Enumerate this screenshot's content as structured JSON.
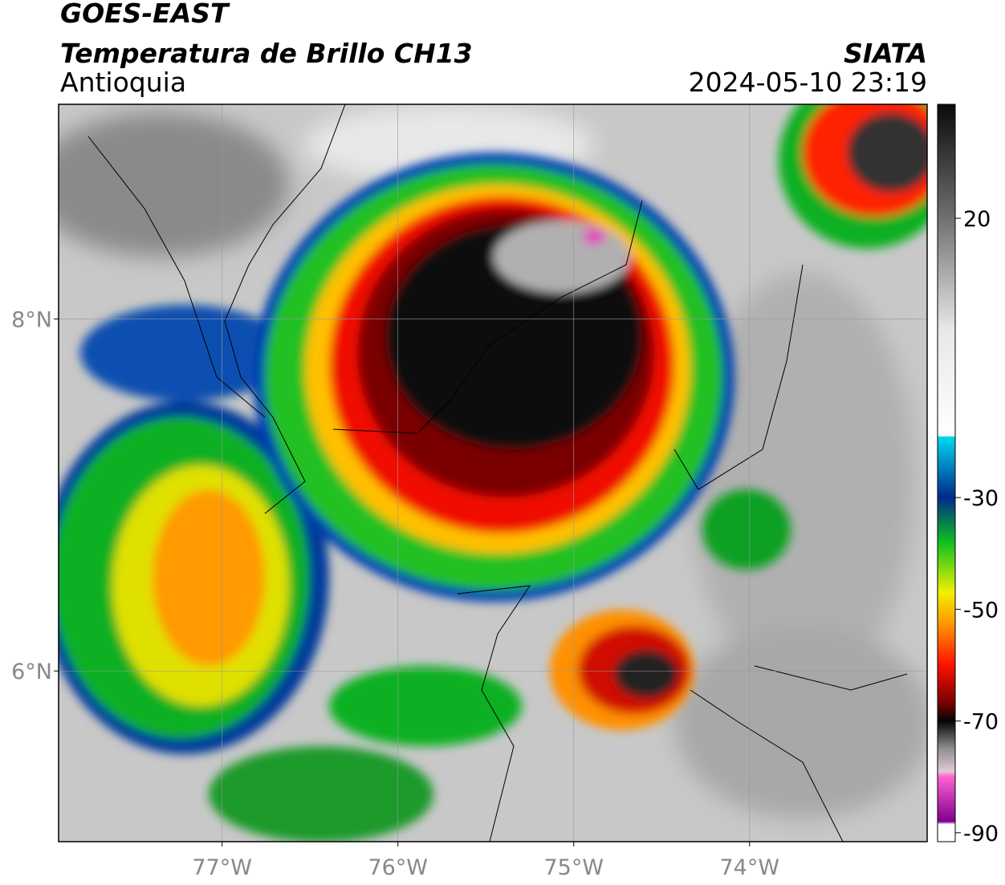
{
  "header": {
    "title": "GOES-EAST",
    "subtitle": "Temperatura de Brillo CH13",
    "region": "Antioquia",
    "source": "SIATA",
    "timestamp": "2024-05-10 23:19"
  },
  "map": {
    "xlim": [
      -77.93,
      -72.99
    ],
    "ylim": [
      5.03,
      9.22
    ],
    "xticks": [
      {
        "value": -77,
        "label": "77°W"
      },
      {
        "value": -76,
        "label": "76°W"
      },
      {
        "value": -75,
        "label": "75°W"
      },
      {
        "value": -74,
        "label": "74°W"
      }
    ],
    "yticks": [
      {
        "value": 8,
        "label": "8°N"
      },
      {
        "value": 6,
        "label": "6°N"
      }
    ],
    "grid": true
  },
  "colorbar": {
    "clim": [
      -91.6,
      40.4
    ],
    "ticks": [
      20,
      -30,
      -50,
      -70,
      -90
    ],
    "stops": [
      {
        "value": 40.4,
        "color": "#0a0a0a"
      },
      {
        "value": 20,
        "color": "#707070"
      },
      {
        "value": 0,
        "color": "#e8e8e8"
      },
      {
        "value": -19,
        "color": "#ffffff"
      },
      {
        "value": -19.1,
        "color": "#00d8f0"
      },
      {
        "value": -30,
        "color": "#002a8a"
      },
      {
        "value": -38,
        "color": "#10c020"
      },
      {
        "value": -47,
        "color": "#f0f000"
      },
      {
        "value": -53,
        "color": "#ff9000"
      },
      {
        "value": -60,
        "color": "#ff1000"
      },
      {
        "value": -67,
        "color": "#700000"
      },
      {
        "value": -70,
        "color": "#050505"
      },
      {
        "value": -75,
        "color": "#909090"
      },
      {
        "value": -79,
        "color": "#e0c8d8"
      },
      {
        "value": -80,
        "color": "#ff60d0"
      },
      {
        "value": -88,
        "color": "#800090"
      },
      {
        "value": -88.5,
        "color": "#ffffff"
      },
      {
        "value": -91.6,
        "color": "#ffffff"
      }
    ]
  }
}
